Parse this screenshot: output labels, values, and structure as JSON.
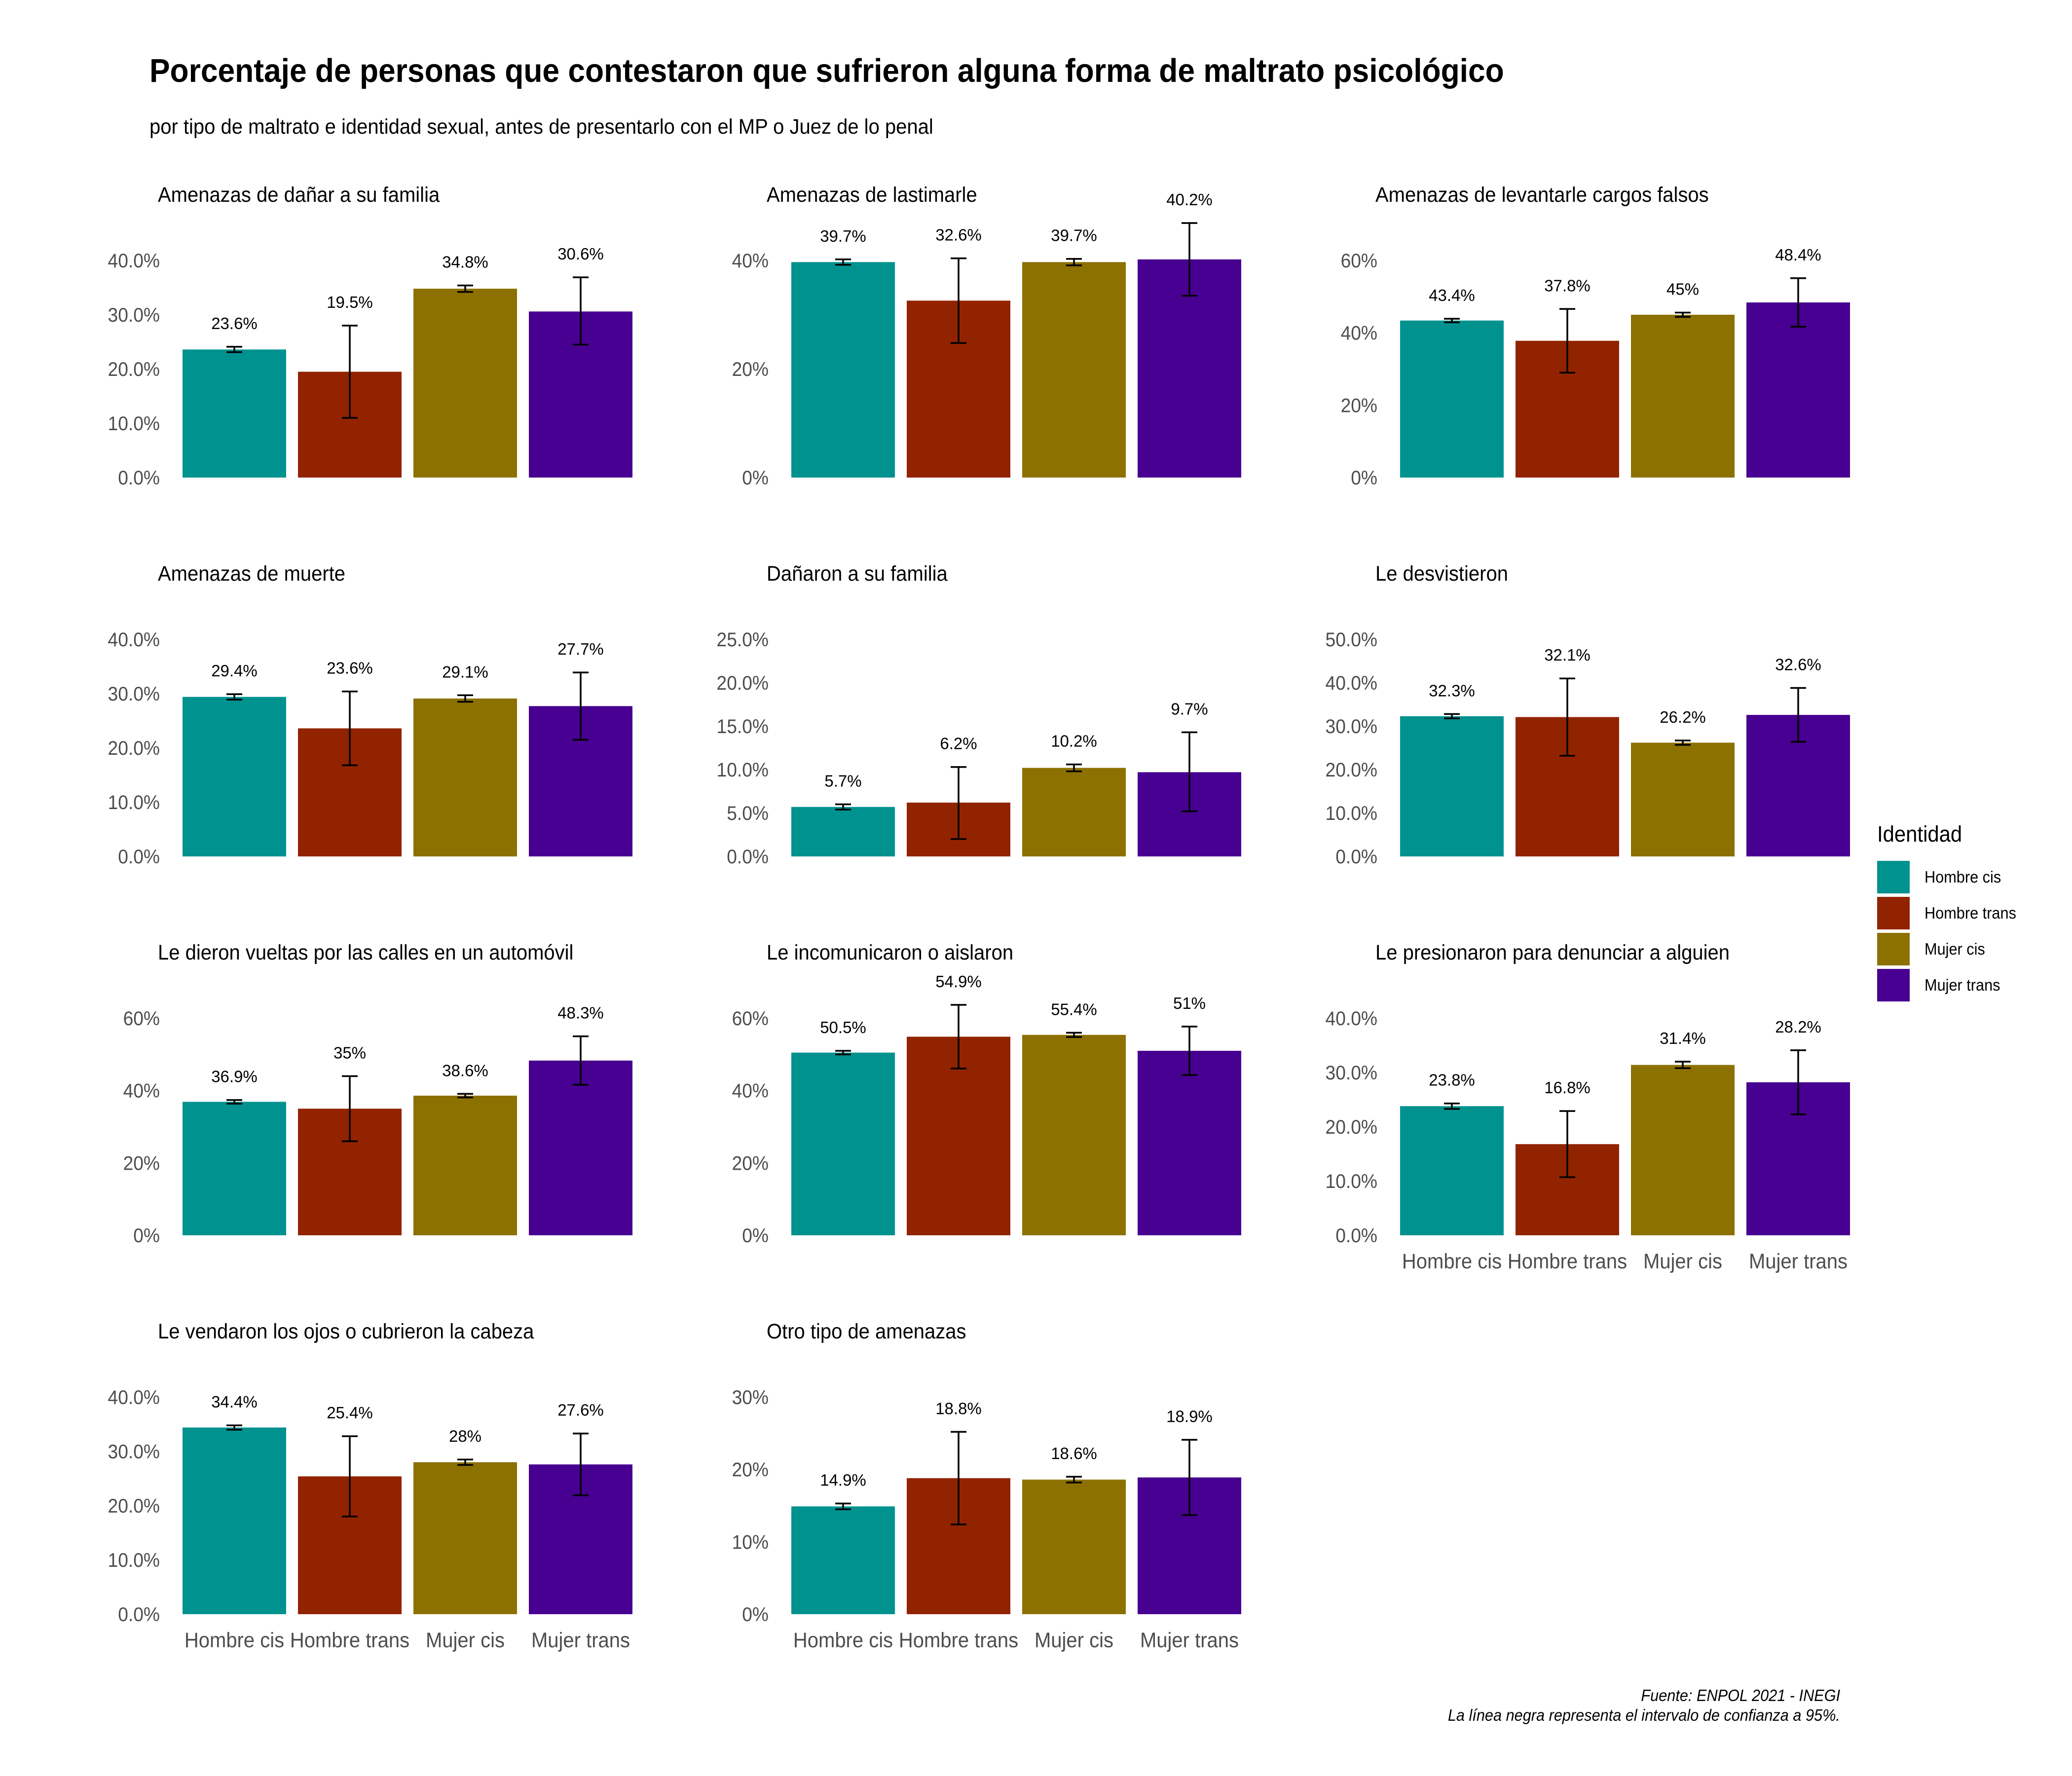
{
  "title": "Porcentaje de personas que contestaron que sufrieron alguna forma de maltrato psicológico",
  "subtitle": "por tipo de maltrato e identidad sexual, antes de presentarlo con el MP o Juez de lo penal",
  "legend": {
    "title": "Identidad",
    "items": [
      {
        "label": "Hombre cis",
        "color": "#00928F"
      },
      {
        "label": "Hombre trans",
        "color": "#922300"
      },
      {
        "label": "Mujer cis",
        "color": "#8C7100"
      },
      {
        "label": "Mujer trans",
        "color": "#470091"
      }
    ]
  },
  "source": "Fuente: ENPOL 2021 - INEGI",
  "ci_note": "La línea negra representa el intervalo de confianza a 95%.",
  "chart_data": [
    {
      "type": "bar",
      "title": "Amenazas de dañar a su familia",
      "categories": [
        "Hombre cis",
        "Hombre trans",
        "Mujer cis",
        "Mujer trans"
      ],
      "values": [
        23.6,
        19.5,
        34.8,
        30.6
      ],
      "labels": [
        "23.6%",
        "19.5%",
        "34.8%",
        "30.6%"
      ],
      "error_bars": [
        [
          23.1,
          24.1
        ],
        [
          11.0,
          28.0
        ],
        [
          34.2,
          35.4
        ],
        [
          24.5,
          36.9
        ]
      ],
      "ylim": [
        0,
        40
      ],
      "yticks": [
        0,
        10,
        20,
        30,
        40
      ],
      "yticklabels": [
        "0.0%",
        "10.0%",
        "20.0%",
        "30.0%",
        "40.0%"
      ]
    },
    {
      "type": "bar",
      "title": "Amenazas de lastimarle",
      "categories": [
        "Hombre cis",
        "Hombre trans",
        "Mujer cis",
        "Mujer trans"
      ],
      "values": [
        39.7,
        32.6,
        39.7,
        40.2
      ],
      "labels": [
        "39.7%",
        "32.6%",
        "39.7%",
        "40.2%"
      ],
      "error_bars": [
        [
          39.2,
          40.2
        ],
        [
          24.8,
          40.4
        ],
        [
          39.1,
          40.3
        ],
        [
          33.5,
          46.9
        ]
      ],
      "ylim": [
        0,
        40
      ],
      "yticks": [
        0,
        20,
        40
      ],
      "yticklabels": [
        "0%",
        "20%",
        "40%"
      ]
    },
    {
      "type": "bar",
      "title": "Amenazas de levantarle cargos falsos",
      "categories": [
        "Hombre cis",
        "Hombre trans",
        "Mujer cis",
        "Mujer trans"
      ],
      "values": [
        43.4,
        37.8,
        45,
        48.4
      ],
      "labels": [
        "43.4%",
        "37.8%",
        "45%",
        "48.4%"
      ],
      "error_bars": [
        [
          42.9,
          43.9
        ],
        [
          29.0,
          46.6
        ],
        [
          44.4,
          45.6
        ],
        [
          41.7,
          55.1
        ]
      ],
      "ylim": [
        0,
        60
      ],
      "yticks": [
        0,
        20,
        40,
        60
      ],
      "yticklabels": [
        "0%",
        "20%",
        "40%",
        "60%"
      ]
    },
    {
      "type": "bar",
      "title": "Amenazas de muerte",
      "categories": [
        "Hombre cis",
        "Hombre trans",
        "Mujer cis",
        "Mujer trans"
      ],
      "values": [
        29.4,
        23.6,
        29.1,
        27.7
      ],
      "labels": [
        "29.4%",
        "23.6%",
        "29.1%",
        "27.7%"
      ],
      "error_bars": [
        [
          28.9,
          29.9
        ],
        [
          16.8,
          30.4
        ],
        [
          28.5,
          29.7
        ],
        [
          21.5,
          33.9
        ]
      ],
      "ylim": [
        0,
        40
      ],
      "yticks": [
        0,
        10,
        20,
        30,
        40
      ],
      "yticklabels": [
        "0.0%",
        "10.0%",
        "20.0%",
        "30.0%",
        "40.0%"
      ]
    },
    {
      "type": "bar",
      "title": "Dañaron a su familia",
      "categories": [
        "Hombre cis",
        "Hombre trans",
        "Mujer cis",
        "Mujer trans"
      ],
      "values": [
        5.7,
        6.2,
        10.2,
        9.7
      ],
      "labels": [
        "5.7%",
        "6.2%",
        "10.2%",
        "9.7%"
      ],
      "error_bars": [
        [
          5.4,
          6.0
        ],
        [
          2.0,
          10.3
        ],
        [
          9.8,
          10.6
        ],
        [
          5.2,
          14.3
        ]
      ],
      "ylim": [
        0,
        25
      ],
      "yticks": [
        0,
        5,
        10,
        15,
        20,
        25
      ],
      "yticklabels": [
        "0.0%",
        "5.0%",
        "10.0%",
        "15.0%",
        "20.0%",
        "25.0%"
      ]
    },
    {
      "type": "bar",
      "title": "Le desvistieron",
      "categories": [
        "Hombre cis",
        "Hombre trans",
        "Mujer cis",
        "Mujer trans"
      ],
      "values": [
        32.3,
        32.1,
        26.2,
        32.6
      ],
      "labels": [
        "32.3%",
        "32.1%",
        "26.2%",
        "32.6%"
      ],
      "error_bars": [
        [
          31.8,
          32.8
        ],
        [
          23.2,
          41.0
        ],
        [
          25.7,
          26.7
        ],
        [
          26.4,
          38.8
        ]
      ],
      "ylim": [
        0,
        50
      ],
      "yticks": [
        0,
        10,
        20,
        30,
        40,
        50
      ],
      "yticklabels": [
        "0.0%",
        "10.0%",
        "20.0%",
        "30.0%",
        "40.0%",
        "50.0%"
      ]
    },
    {
      "type": "bar",
      "title": "Le dieron vueltas por las calles en un automóvil",
      "categories": [
        "Hombre cis",
        "Hombre trans",
        "Mujer cis",
        "Mujer trans"
      ],
      "values": [
        36.9,
        35,
        38.6,
        48.3
      ],
      "labels": [
        "36.9%",
        "35%",
        "38.6%",
        "48.3%"
      ],
      "error_bars": [
        [
          36.4,
          37.4
        ],
        [
          26.0,
          44.0
        ],
        [
          38.1,
          39.1
        ],
        [
          41.6,
          55.0
        ]
      ],
      "ylim": [
        0,
        60
      ],
      "yticks": [
        0,
        20,
        40,
        60
      ],
      "yticklabels": [
        "0%",
        "20%",
        "40%",
        "60%"
      ]
    },
    {
      "type": "bar",
      "title": "Le incomunicaron o aislaron",
      "categories": [
        "Hombre cis",
        "Hombre trans",
        "Mujer cis",
        "Mujer trans"
      ],
      "values": [
        50.5,
        54.9,
        55.4,
        51
      ],
      "labels": [
        "50.5%",
        "54.9%",
        "55.4%",
        "51%"
      ],
      "error_bars": [
        [
          50.0,
          51.0
        ],
        [
          46.1,
          63.7
        ],
        [
          54.8,
          56.0
        ],
        [
          44.3,
          57.7
        ]
      ],
      "ylim": [
        0,
        60
      ],
      "yticks": [
        0,
        20,
        40,
        60
      ],
      "yticklabels": [
        "0%",
        "20%",
        "40%",
        "60%"
      ]
    },
    {
      "type": "bar",
      "title": "Le presionaron para denunciar a alguien",
      "categories": [
        "Hombre cis",
        "Hombre trans",
        "Mujer cis",
        "Mujer trans"
      ],
      "values": [
        23.8,
        16.8,
        31.4,
        28.2
      ],
      "labels": [
        "23.8%",
        "16.8%",
        "31.4%",
        "28.2%"
      ],
      "error_bars": [
        [
          23.3,
          24.3
        ],
        [
          10.7,
          22.9
        ],
        [
          30.8,
          32.0
        ],
        [
          22.3,
          34.1
        ]
      ],
      "ylim": [
        0,
        40
      ],
      "yticks": [
        0,
        10,
        20,
        30,
        40
      ],
      "yticklabels": [
        "0.0%",
        "10.0%",
        "20.0%",
        "30.0%",
        "40.0%"
      ]
    },
    {
      "type": "bar",
      "title": "Le vendaron los ojos o cubrieron la cabeza",
      "categories": [
        "Hombre cis",
        "Hombre trans",
        "Mujer cis",
        "Mujer trans"
      ],
      "values": [
        34.4,
        25.4,
        28,
        27.6
      ],
      "labels": [
        "34.4%",
        "25.4%",
        "28%",
        "27.6%"
      ],
      "error_bars": [
        [
          34.0,
          34.8
        ],
        [
          18.0,
          32.8
        ],
        [
          27.5,
          28.5
        ],
        [
          21.9,
          33.3
        ]
      ],
      "ylim": [
        0,
        40
      ],
      "yticks": [
        0,
        10,
        20,
        30,
        40
      ],
      "yticklabels": [
        "0.0%",
        "10.0%",
        "20.0%",
        "30.0%",
        "40.0%"
      ]
    },
    {
      "type": "bar",
      "title": "Otro tipo de amenazas",
      "categories": [
        "Hombre cis",
        "Hombre trans",
        "Mujer cis",
        "Mujer trans"
      ],
      "values": [
        14.9,
        18.8,
        18.6,
        18.9
      ],
      "labels": [
        "14.9%",
        "18.8%",
        "18.6%",
        "18.9%"
      ],
      "error_bars": [
        [
          14.5,
          15.3
        ],
        [
          12.4,
          25.2
        ],
        [
          18.2,
          19.0
        ],
        [
          13.7,
          24.1
        ]
      ],
      "ylim": [
        0,
        30
      ],
      "yticks": [
        0,
        10,
        20,
        30
      ],
      "yticklabels": [
        "0%",
        "10%",
        "20%",
        "30%"
      ]
    }
  ]
}
